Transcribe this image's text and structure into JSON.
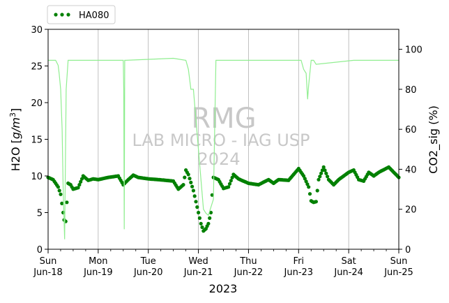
{
  "chart_data": {
    "type": "line",
    "xlabel": "2023",
    "x_ticks": [
      {
        "day": "Sun",
        "date": "Jun-18"
      },
      {
        "day": "Mon",
        "date": "Jun-19"
      },
      {
        "day": "Tue",
        "date": "Jun-20"
      },
      {
        "day": "Wed",
        "date": "Jun-21"
      },
      {
        "day": "Thu",
        "date": "Jun-22"
      },
      {
        "day": "Fri",
        "date": "Jun-23"
      },
      {
        "day": "Sat",
        "date": "Jun-24"
      },
      {
        "day": "Sun",
        "date": "Jun-25"
      }
    ],
    "xlim": [
      0,
      7
    ],
    "left_axis": {
      "label_prefix": "H2O [",
      "label_unit": "g/m",
      "label_exp": "3",
      "label_suffix": "]",
      "ylim": [
        0,
        30
      ],
      "ticks": [
        "0",
        "5",
        "10",
        "15",
        "20",
        "25",
        "30"
      ]
    },
    "right_axis": {
      "label": "CO2_sig (%)",
      "ylim": [
        0,
        110
      ],
      "ticks": [
        "0",
        "20",
        "40",
        "60",
        "80",
        "100"
      ],
      "color": "#90ee90"
    },
    "grid": "vertical",
    "legend_placement": "top-left (above plot)",
    "series": [
      {
        "name": "HA080",
        "axis": "left",
        "style": "dotted-markers",
        "color": "#008000",
        "x": [
          0.0,
          0.1,
          0.2,
          0.25,
          0.3,
          0.32,
          0.35,
          0.4,
          0.45,
          0.5,
          0.6,
          0.7,
          0.8,
          0.9,
          1.0,
          1.2,
          1.4,
          1.5,
          1.6,
          1.7,
          1.8,
          2.0,
          2.2,
          2.5,
          2.6,
          2.7,
          2.75,
          2.8,
          2.9,
          3.0,
          3.05,
          3.1,
          3.15,
          3.2,
          3.25,
          3.3,
          3.4,
          3.5,
          3.6,
          3.7,
          3.8,
          4.0,
          4.2,
          4.4,
          4.5,
          4.6,
          4.8,
          5.0,
          5.1,
          5.2,
          5.25,
          5.3,
          5.35,
          5.4,
          5.5,
          5.6,
          5.7,
          5.8,
          5.9,
          6.0,
          6.1,
          6.2,
          6.3,
          6.4,
          6.5,
          6.6,
          6.8,
          6.9,
          7.0
        ],
        "y": [
          9.8,
          9.5,
          8.5,
          7.5,
          5.0,
          4.0,
          3.8,
          9.0,
          8.8,
          8.2,
          8.4,
          10.0,
          9.4,
          9.6,
          9.5,
          9.8,
          10.0,
          8.8,
          9.5,
          10.1,
          9.8,
          9.6,
          9.5,
          9.3,
          8.2,
          8.8,
          10.8,
          10.2,
          8.0,
          5.0,
          3.5,
          2.5,
          2.8,
          3.5,
          5.0,
          9.8,
          9.5,
          8.3,
          8.5,
          10.2,
          9.6,
          9.0,
          8.8,
          9.5,
          9.0,
          9.5,
          9.4,
          11.0,
          10.0,
          8.5,
          6.6,
          6.4,
          6.5,
          9.5,
          11.2,
          9.5,
          8.8,
          9.5,
          10.0,
          10.5,
          10.8,
          9.5,
          9.3,
          10.5,
          10.0,
          10.5,
          11.2,
          10.5,
          9.8
        ]
      },
      {
        "name": "CO2_sig",
        "axis": "right",
        "style": "line",
        "color": "#90ee90",
        "x": [
          0.0,
          0.15,
          0.2,
          0.22,
          0.25,
          0.28,
          0.3,
          0.33,
          0.36,
          0.4,
          1.5,
          1.51,
          1.52,
          1.53,
          1.55,
          2.5,
          2.75,
          2.8,
          2.85,
          2.9,
          3.0,
          3.05,
          3.1,
          3.15,
          3.2,
          3.3,
          3.35,
          3.4,
          5.05,
          5.1,
          5.15,
          5.18,
          5.2,
          5.25,
          5.3,
          5.35,
          6.1,
          6.15,
          6.2,
          7.0
        ],
        "y": [
          94.5,
          94.5,
          92.0,
          88.0,
          80.0,
          60.0,
          30.0,
          5.0,
          80.0,
          94.5,
          94.5,
          80.0,
          10.0,
          94.5,
          94.5,
          95.5,
          94.5,
          90.0,
          80.0,
          80.0,
          50.0,
          35.0,
          20.0,
          18.0,
          17.0,
          25.0,
          94.5,
          94.5,
          94.5,
          90.0,
          88.0,
          75.0,
          82.0,
          94.5,
          94.5,
          92.5,
          94.5,
          94.5,
          94.5,
          94.5
        ]
      }
    ],
    "annotations": {
      "watermark_title": "RMG",
      "watermark_subtitle": "LAB MICRO - IAG USP",
      "watermark_year": "2024"
    }
  }
}
